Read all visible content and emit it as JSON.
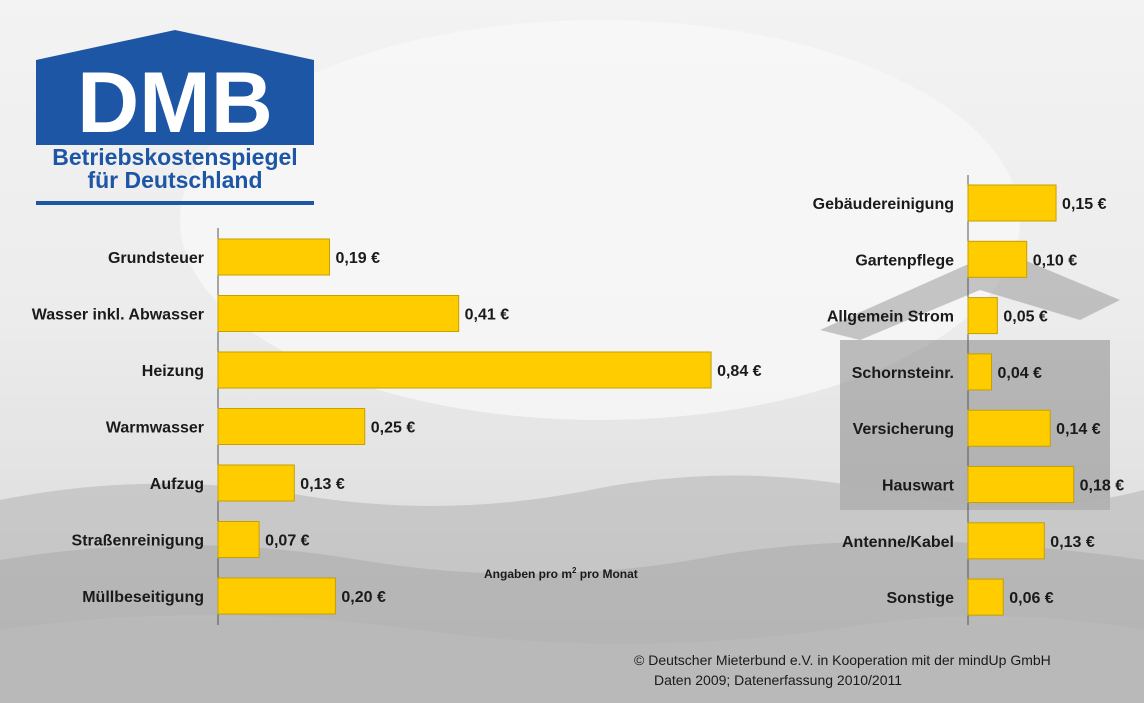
{
  "logo": {
    "letters": "DMB",
    "line1": "Betriebskostenspiegel",
    "line2": "für Deutschland"
  },
  "unit_note": {
    "prefix": "Angaben pro m",
    "superscript": "2",
    "suffix": " pro Monat"
  },
  "footer": {
    "line1": "© Deutscher Mieterbund e.V. in Kooperation mit der mindUp GmbH",
    "line2": "Daten 2009; Datenerfassung 2010/2011"
  },
  "colors": {
    "bar": "#ffcc00",
    "logo_blue": "#1e56a6"
  },
  "chart_data": [
    {
      "type": "bar",
      "orientation": "horizontal",
      "categories": [
        "Grundsteuer",
        "Wasser inkl. Abwasser",
        "Heizung",
        "Warmwasser",
        "Aufzug",
        "Straßenreinigung",
        "Müllbeseitigung"
      ],
      "values": [
        0.19,
        0.41,
        0.84,
        0.25,
        0.13,
        0.07,
        0.2
      ],
      "value_labels": [
        "0,19 €",
        "0,41 €",
        "0,84 €",
        "0,25 €",
        "0,13 €",
        "0,07 €",
        "0,20 €"
      ]
    },
    {
      "type": "bar",
      "orientation": "horizontal",
      "categories": [
        "Gebäudereinigung",
        "Gartenpflege",
        "Allgemein Strom",
        "Schornsteinr.",
        "Versicherung",
        "Hauswart",
        "Antenne/Kabel",
        "Sonstige"
      ],
      "values": [
        0.15,
        0.1,
        0.05,
        0.04,
        0.14,
        0.18,
        0.13,
        0.06
      ],
      "value_labels": [
        "0,15 €",
        "0,10 €",
        "0,05 €",
        "0,04 €",
        "0,14 €",
        "0,18 €",
        "0,13 €",
        "0,06 €"
      ]
    }
  ]
}
